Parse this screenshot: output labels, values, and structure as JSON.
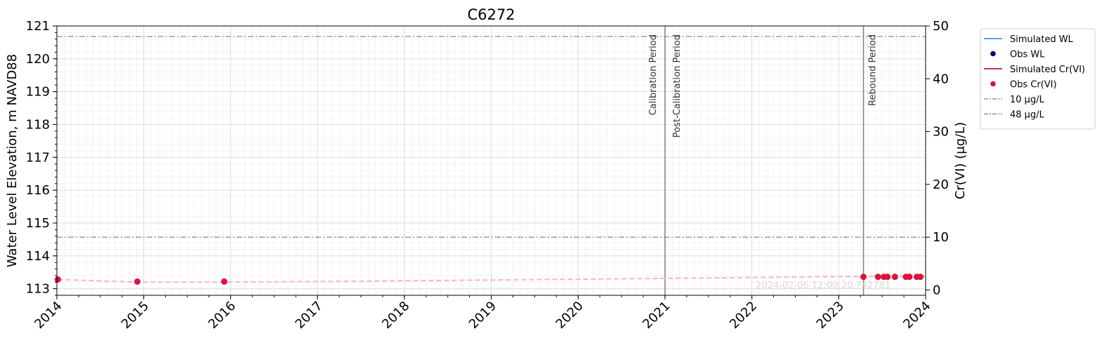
{
  "chart_data": {
    "type": "line",
    "title": "C6272",
    "xlabel": "",
    "ylabel": "Water Level Elevation, m NAVD88",
    "y2label": "Cr(VI) (μg/L)",
    "xlim": [
      "2014-01-01",
      "2024-01-01"
    ],
    "x_ticks": [
      "2014",
      "2015",
      "2016",
      "2017",
      "2018",
      "2019",
      "2020",
      "2021",
      "2022",
      "2023",
      "2024"
    ],
    "ylim": [
      112.8,
      121
    ],
    "y_ticks": [
      "113",
      "114",
      "115",
      "116",
      "117",
      "118",
      "119",
      "120",
      "121"
    ],
    "y2lim": [
      -1,
      50
    ],
    "y2_ticks": [
      "0",
      "10",
      "20",
      "30",
      "40",
      "50"
    ],
    "grid": true,
    "legend_placement": "outside-right",
    "legend": [
      {
        "label": "Simulated WL",
        "kind": "line",
        "color": "#4a90e2"
      },
      {
        "label": "Obs WL",
        "kind": "dot",
        "color": "#000080"
      },
      {
        "label": "Simulated Cr(VI)",
        "kind": "line",
        "color": "#b22222"
      },
      {
        "label": "Obs Cr(VI)",
        "kind": "dot",
        "color": "#dc143c"
      },
      {
        "label": "10 μg/L",
        "kind": "dashdot",
        "color": "#808080"
      },
      {
        "label": "48 μg/L",
        "kind": "dashdot",
        "color": "#808080"
      }
    ],
    "reference_lines": [
      {
        "name": "10 μg/L",
        "value": 10
      },
      {
        "name": "48 μg/L",
        "value": 48
      }
    ],
    "period_lines": [
      {
        "date": "2021-01-01",
        "labels": [
          "Calibration Period",
          "Post-Calibration Period"
        ]
      },
      {
        "date": "2023-04-15",
        "labels": [
          "Rebound Period"
        ]
      }
    ],
    "series": [
      {
        "name": "Simulated Cr(VI)",
        "style": "dashed",
        "color": "#f4b6c2",
        "x": [
          "2014-01-05",
          "2014-12-05",
          "2015-12-05",
          "2017-01-01",
          "2019-01-01",
          "2021-01-01",
          "2023-04-15",
          "2023-12-31"
        ],
        "y": [
          2.0,
          1.5,
          1.5,
          1.6,
          1.9,
          2.2,
          2.6,
          2.6
        ]
      },
      {
        "name": "Obs Cr(VI)",
        "style": "points",
        "color": "#dc143c",
        "x": [
          "2014-01-05",
          "2014-12-05",
          "2015-12-05",
          "2023-04-15",
          "2023-06-15",
          "2023-07-10",
          "2023-07-25",
          "2023-08-25",
          "2023-10-10",
          "2023-10-25",
          "2023-11-25",
          "2023-12-10"
        ],
        "y": [
          2.0,
          1.6,
          1.6,
          2.5,
          2.5,
          2.5,
          2.5,
          2.5,
          2.5,
          2.5,
          2.5,
          2.5
        ]
      }
    ],
    "annotation": "2024-02-06 12:00:20.742781"
  }
}
